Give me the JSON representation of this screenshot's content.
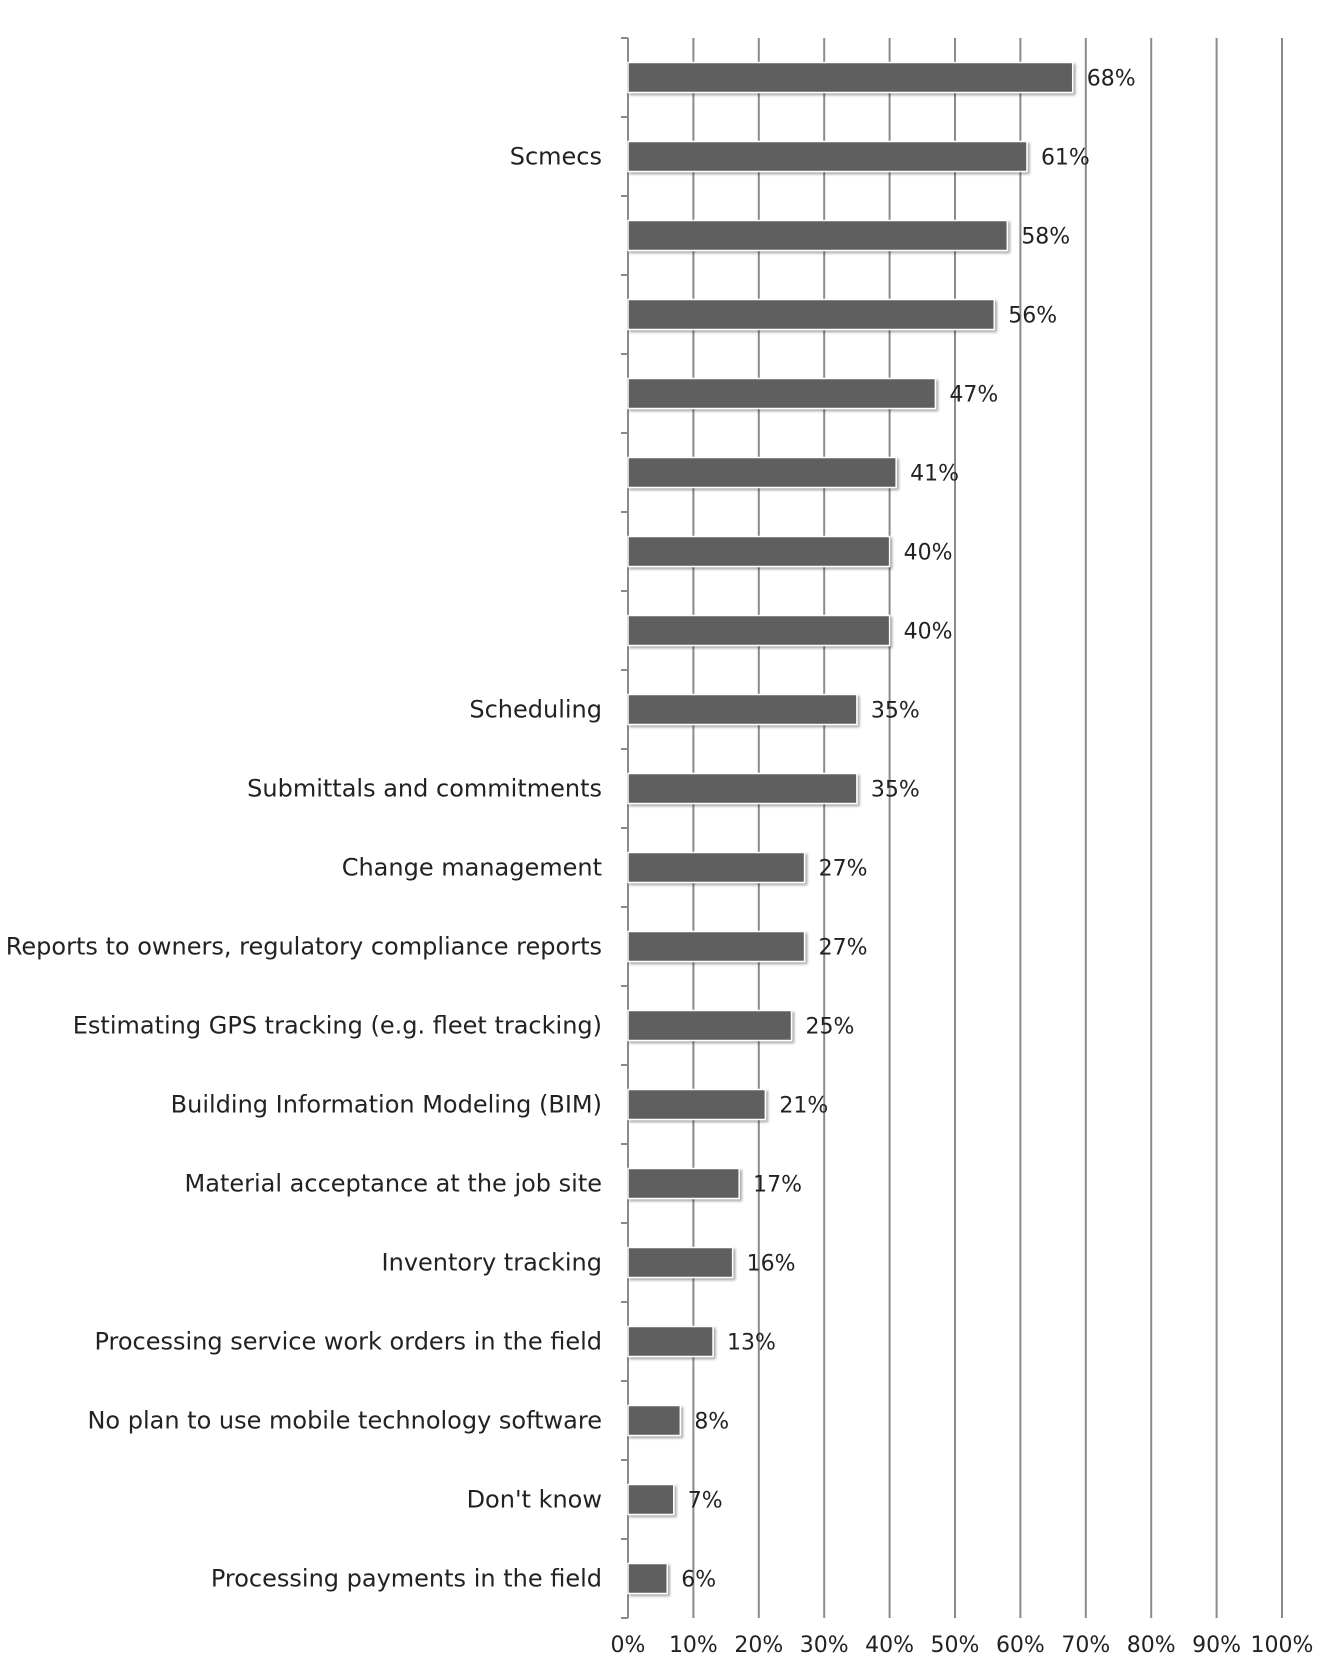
{
  "chart_data": {
    "type": "bar",
    "orientation": "horizontal",
    "categories": [
      "",
      "Scmecs",
      "",
      "",
      "",
      "",
      "",
      "",
      "Scheduling",
      "Submittals and commitments",
      "Change management",
      "Reports to owners, regulatory compliance reports",
      "Estimating GPS tracking (e.g. fleet tracking)",
      "Building Information Modeling (BIM)",
      "Material acceptance at the job site",
      "Inventory tracking",
      "Processing service work orders in the field",
      "No plan to use mobile technology software",
      "Don't know",
      "Processing payments in the field"
    ],
    "values": [
      68,
      61,
      58,
      56,
      47,
      41,
      40,
      40,
      35,
      35,
      27,
      27,
      25,
      21,
      17,
      16,
      13,
      8,
      7,
      6
    ],
    "value_labels": [
      "68%",
      "61%",
      "58%",
      "56%",
      "47%",
      "41%",
      "40%",
      "40%",
      "35%",
      "35%",
      "27%",
      "27%",
      "25%",
      "21%",
      "17%",
      "16%",
      "13%",
      "8%",
      "7%",
      "6%"
    ],
    "xlim": [
      0,
      100
    ],
    "xticks": [
      "0%",
      "10%",
      "20%",
      "30%",
      "40%",
      "50%",
      "60%",
      "70%",
      "80%",
      "90%",
      "100%"
    ],
    "grid": "vertical",
    "bar_color": "#5f5f5f",
    "grid_color": "#8a8a8a",
    "title": "",
    "xlabel": "",
    "ylabel": ""
  }
}
